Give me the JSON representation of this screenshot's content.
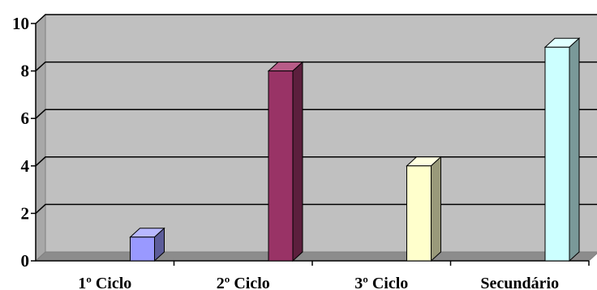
{
  "chart_data": {
    "type": "bar",
    "style": "3d-column",
    "title": "",
    "xlabel": "",
    "ylabel": "",
    "categories": [
      "1º Ciclo",
      "2º Ciclo",
      "3º Ciclo",
      "Secundário"
    ],
    "values": [
      1,
      8,
      4,
      9
    ],
    "ylim": [
      0,
      10
    ],
    "yticks": [
      "0",
      "2",
      "4",
      "6",
      "8",
      "10"
    ],
    "grid": true,
    "legend": "none",
    "plot_background": "#c0c0c0",
    "gridline_color": "#000000",
    "bar_colors": [
      {
        "front": "#9999ff",
        "side": "#5c5c99",
        "top": "#b8b8ff"
      },
      {
        "front": "#993366",
        "side": "#5c1f3d",
        "top": "#b85c88"
      },
      {
        "front": "#ffffcc",
        "side": "#99997a",
        "top": "#ffffe0"
      },
      {
        "front": "#ccffff",
        "side": "#7a9999",
        "top": "#e0ffff"
      }
    ]
  }
}
